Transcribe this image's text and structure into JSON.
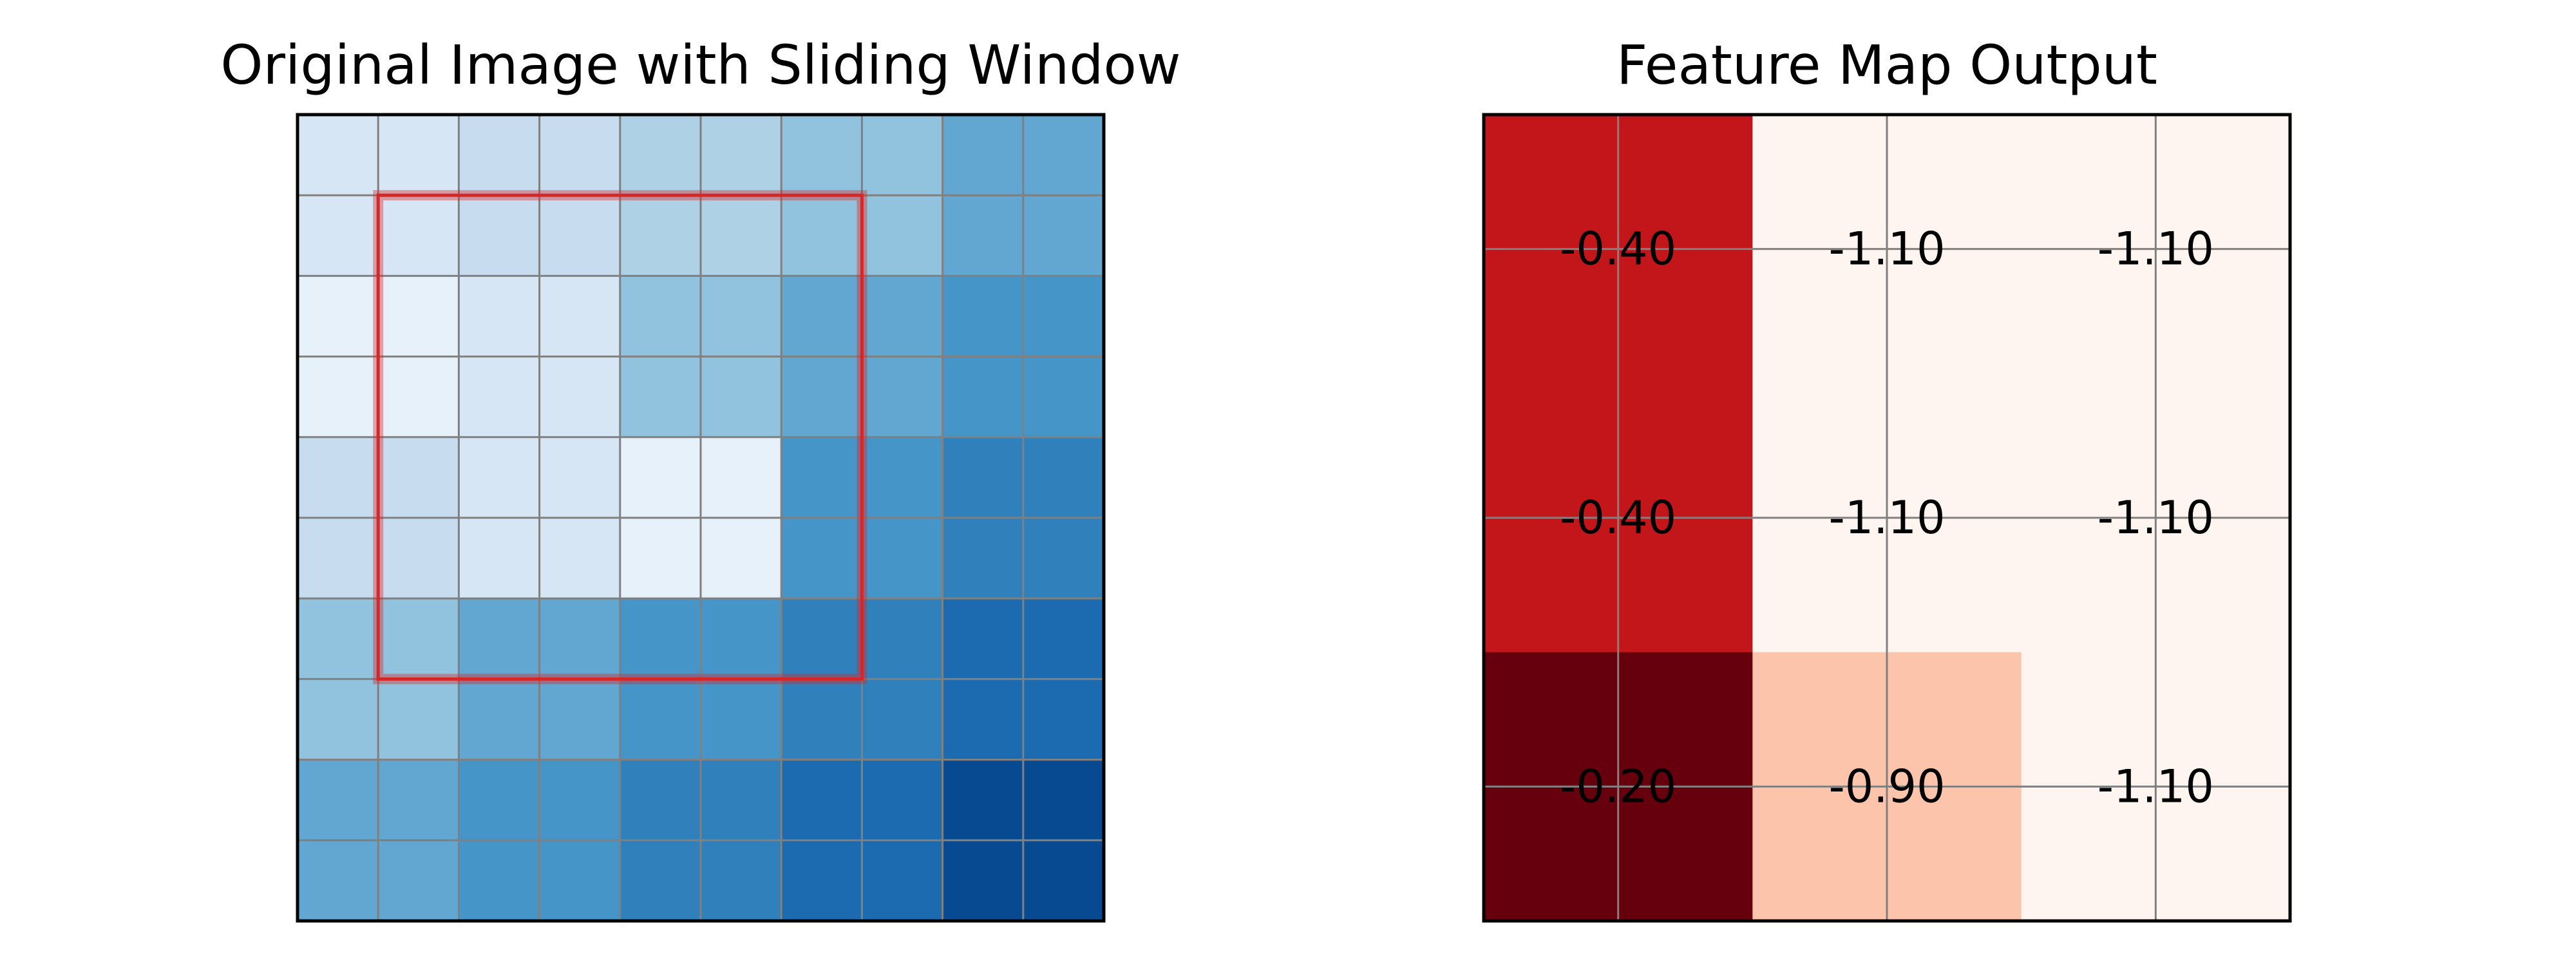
{
  "chart_data": [
    {
      "type": "heatmap",
      "title": "Original Image with Sliding Window",
      "rows": 10,
      "cols": 10,
      "colormap": "Blues",
      "vmin": 0.0,
      "vmax": 1.0,
      "values": [
        [
          0.1,
          0.1,
          0.2,
          0.2,
          0.3,
          0.3,
          0.4,
          0.4,
          0.55,
          0.55
        ],
        [
          0.1,
          0.1,
          0.2,
          0.2,
          0.3,
          0.3,
          0.4,
          0.4,
          0.55,
          0.55
        ],
        [
          0.0,
          0.0,
          0.1,
          0.1,
          0.4,
          0.4,
          0.55,
          0.55,
          0.65,
          0.65
        ],
        [
          0.0,
          0.0,
          0.1,
          0.1,
          0.4,
          0.4,
          0.55,
          0.55,
          0.65,
          0.65
        ],
        [
          0.2,
          0.2,
          0.1,
          0.1,
          0.0,
          0.0,
          0.65,
          0.65,
          0.75,
          0.75
        ],
        [
          0.2,
          0.2,
          0.1,
          0.1,
          0.0,
          0.0,
          0.65,
          0.65,
          0.75,
          0.75
        ],
        [
          0.4,
          0.4,
          0.55,
          0.55,
          0.65,
          0.65,
          0.75,
          0.75,
          0.85,
          0.85
        ],
        [
          0.4,
          0.4,
          0.55,
          0.55,
          0.65,
          0.65,
          0.75,
          0.75,
          0.85,
          0.85
        ],
        [
          0.55,
          0.55,
          0.65,
          0.65,
          0.75,
          0.75,
          0.85,
          0.85,
          1.0,
          1.0
        ],
        [
          0.55,
          0.55,
          0.65,
          0.65,
          0.75,
          0.75,
          0.85,
          0.85,
          1.0,
          1.0
        ]
      ],
      "sliding_window": {
        "row_start": 1,
        "col_start": 1,
        "size": 6,
        "color": "#d62728"
      }
    },
    {
      "type": "heatmap",
      "title": "Feature Map Output",
      "rows": 3,
      "cols": 3,
      "colormap": "Reds",
      "values": [
        [
          -0.4,
          -1.1,
          -1.1
        ],
        [
          -0.4,
          -1.1,
          -1.1
        ],
        [
          -0.2,
          -0.9,
          -1.1
        ]
      ],
      "labels": [
        [
          "-0.40",
          "-1.10",
          "-1.10"
        ],
        [
          "-0.40",
          "-1.10",
          "-1.10"
        ],
        [
          "-0.20",
          "-0.90",
          "-1.10"
        ]
      ],
      "cell_colors": [
        [
          "#c2161b",
          "#fff5f0",
          "#fff5f0"
        ],
        [
          "#c2161b",
          "#fff5f0",
          "#fff5f0"
        ],
        [
          "#67000d",
          "#fbc4ab",
          "#fff5f0"
        ]
      ]
    }
  ]
}
